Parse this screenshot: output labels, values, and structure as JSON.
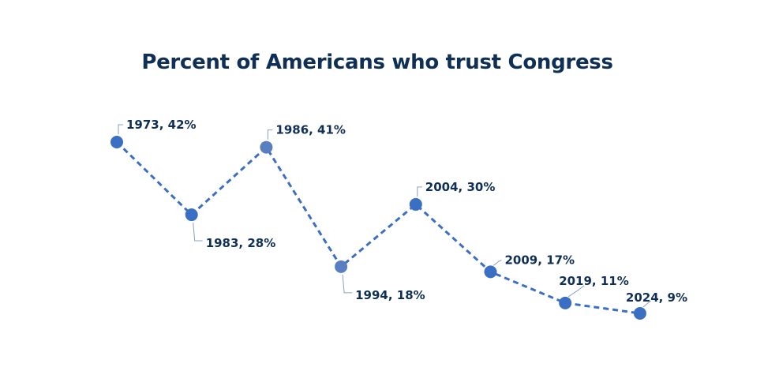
{
  "chart_data": {
    "type": "line",
    "title": "Percent of Americans who trust Congress",
    "x": [
      1973,
      1983,
      1986,
      1994,
      2004,
      2009,
      2019,
      2024
    ],
    "series": [
      {
        "values": [
          42,
          28,
          41,
          18,
          30,
          17,
          11,
          9
        ]
      }
    ],
    "data_labels": [
      "1973, 42%",
      "1983, 28%",
      "1986, 41%",
      "1994, 18%",
      "2004, 30%",
      "2009, 17%",
      "2019, 11%",
      "2024, 9%"
    ],
    "line_style": "dashed",
    "colors": {
      "line": "#3b6fc4",
      "marker": "#3b6fc4",
      "marker_muted": "#5a7fc0",
      "text": "#0f2f57"
    }
  }
}
